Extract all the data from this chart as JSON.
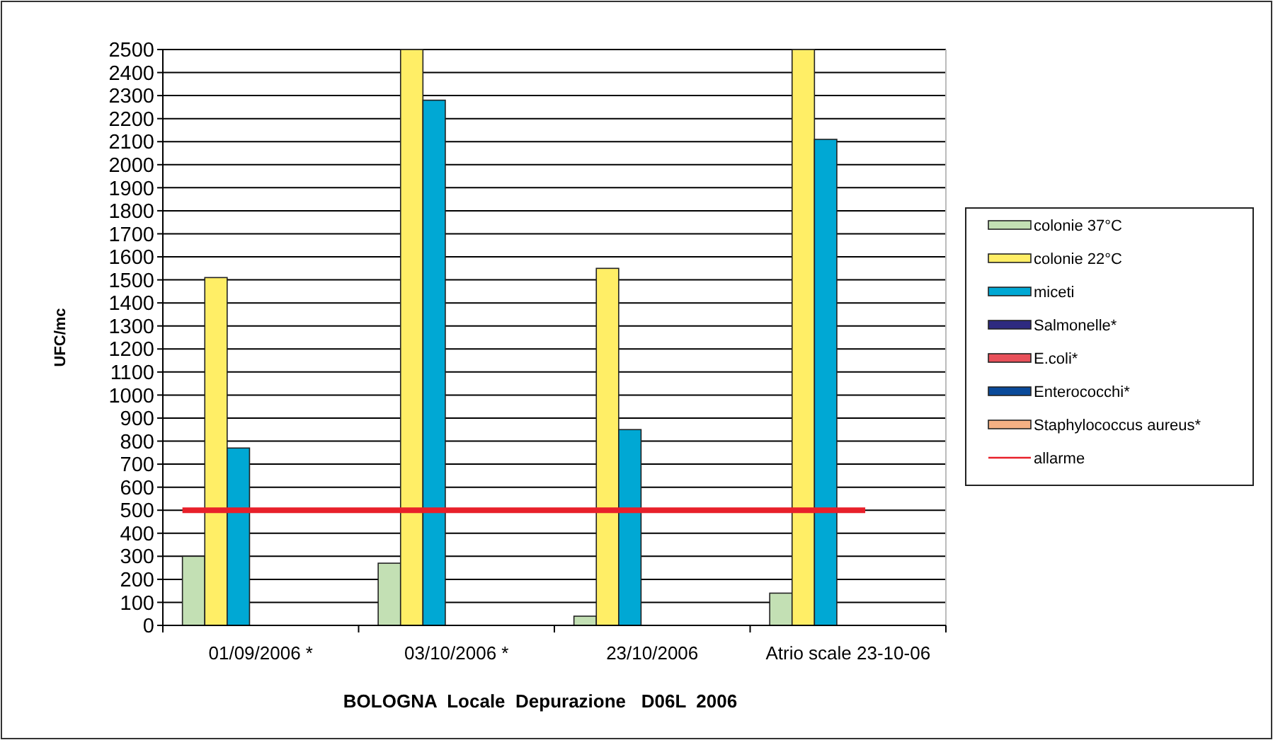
{
  "chart_data": {
    "type": "bar",
    "xlabel": "BOLOGNA  Locale  Depurazione   D06L  2006",
    "ylabel": "UFC/mc",
    "categories": [
      "01/09/2006 *",
      "03/10/2006 *",
      "23/10/2006",
      "Atrio scale 23-10-06"
    ],
    "series": [
      {
        "name": "colonie 37°C",
        "color": "#c3e0b4",
        "values": [
          300,
          270,
          40,
          140
        ]
      },
      {
        "name": "colonie 22°C",
        "color": "#ffee66",
        "values": [
          1510,
          2500,
          1550,
          2500
        ]
      },
      {
        "name": "miceti",
        "color": "#00a8d4",
        "values": [
          770,
          2280,
          850,
          2110
        ]
      },
      {
        "name": "Salmonelle*",
        "color": "#2e2a80",
        "values": [
          0,
          0,
          0,
          0
        ]
      },
      {
        "name": "E.coli*",
        "color": "#e8505a",
        "values": [
          0,
          0,
          0,
          0
        ]
      },
      {
        "name": "Enterococchi*",
        "color": "#0a4a9a",
        "values": [
          0,
          0,
          0,
          0
        ]
      },
      {
        "name": "Staphylococcus aureus*",
        "color": "#f4b084",
        "values": [
          0,
          0,
          0,
          0
        ]
      }
    ],
    "ref_lines": [
      {
        "axis": "y",
        "value": 500,
        "label": "allarme",
        "color": "#e8202a"
      }
    ],
    "ylim": [
      0,
      2500
    ],
    "yticks": [
      0,
      100,
      200,
      300,
      400,
      500,
      600,
      700,
      800,
      900,
      1000,
      1100,
      1200,
      1300,
      1400,
      1500,
      1600,
      1700,
      1800,
      1900,
      2000,
      2100,
      2200,
      2300,
      2400,
      2500
    ],
    "grid": "y",
    "legend": "right"
  }
}
